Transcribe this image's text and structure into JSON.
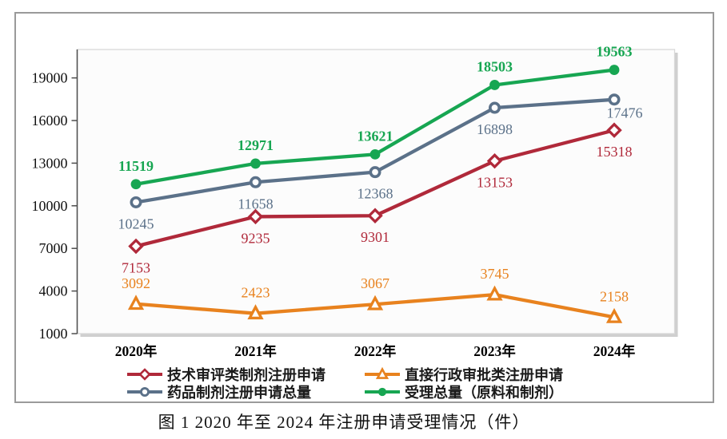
{
  "chart_data": {
    "type": "line",
    "caption": "图 1  2020 年至 2024 年注册申请受理情况（件）",
    "categories": [
      "2020年",
      "2021年",
      "2022年",
      "2023年",
      "2024年"
    ],
    "series": [
      {
        "name": "技术审评类制剂注册申请",
        "marker": "diamond-open",
        "color": "#B0293A",
        "label_position": "below",
        "label_bold": false,
        "values": [
          7153,
          9235,
          9301,
          13153,
          15318
        ]
      },
      {
        "name": "直接行政审批类注册申请",
        "marker": "triangle-open",
        "color": "#E8821E",
        "label_position": "above",
        "label_bold": false,
        "values": [
          3092,
          2423,
          3067,
          3745,
          2158
        ]
      },
      {
        "name": "药品制剂注册申请总量",
        "marker": "circle-open",
        "color": "#5B7189",
        "label_position": "below",
        "label_bold": false,
        "values": [
          10245,
          11658,
          12368,
          16898,
          17476
        ]
      },
      {
        "name": "受理总量（原料和制剂）",
        "marker": "circle-filled",
        "color": "#17A652",
        "label_position": "above",
        "label_bold": true,
        "values": [
          11519,
          12971,
          13621,
          18503,
          19563
        ]
      }
    ],
    "y_axis": {
      "ticks": [
        1000,
        4000,
        7000,
        10000,
        13000,
        16000,
        19000
      ],
      "range": [
        1000,
        21000
      ]
    },
    "xlabel": "",
    "ylabel": "",
    "grid": "off",
    "legend_position": "bottom"
  }
}
